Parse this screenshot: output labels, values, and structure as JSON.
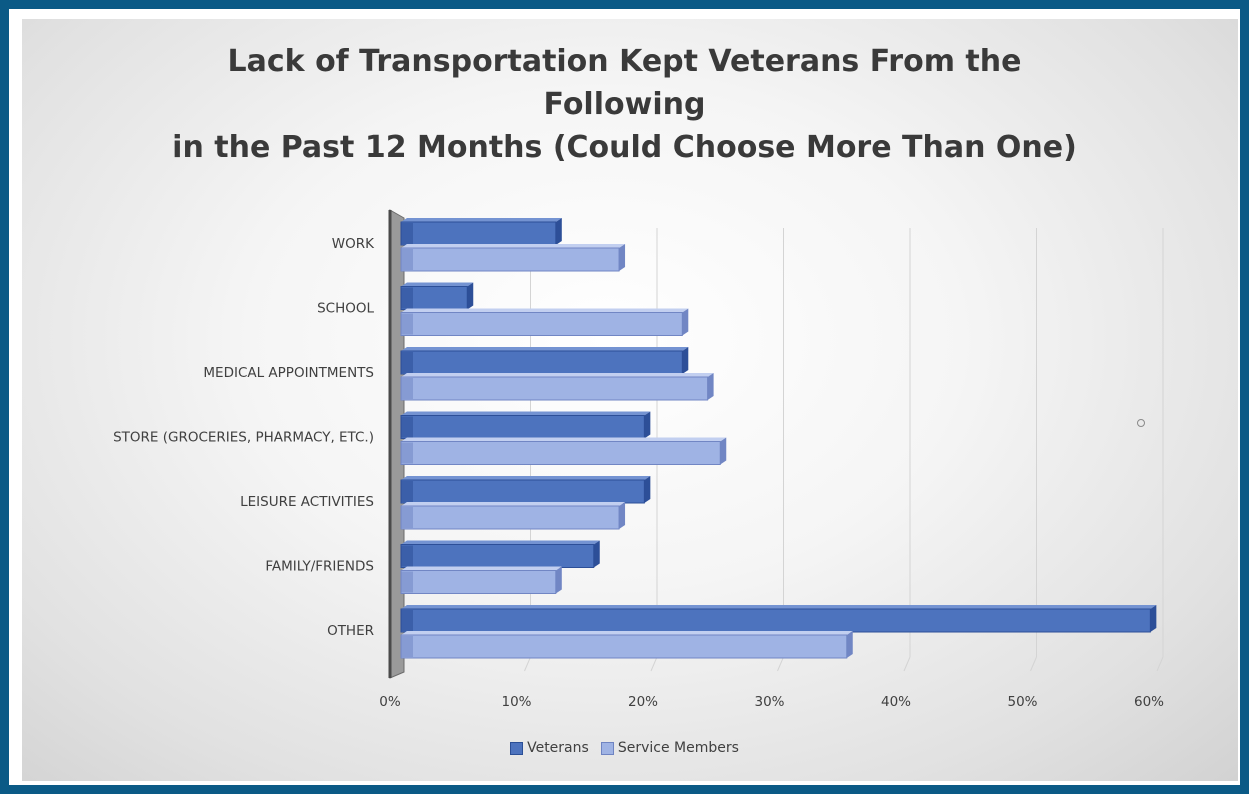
{
  "chart_data": {
    "type": "bar",
    "orientation": "horizontal",
    "title": [
      "Lack of Transportation Kept Veterans From the",
      "Following",
      "in the Past 12 Months (Could Choose More Than One)"
    ],
    "categories": [
      "WORK",
      "SCHOOL",
      "MEDICAL APPOINTMENTS",
      "STORE (GROCERIES, PHARMACY, ETC.)",
      "LEISURE ACTIVITIES",
      "FAMILY/FRIENDS",
      "OTHER"
    ],
    "series": [
      {
        "name": "Veterans",
        "values": [
          12,
          5,
          22,
          19,
          19,
          15,
          59
        ],
        "color": "#4d73be"
      },
      {
        "name": "Service Members",
        "values": [
          17,
          22,
          24,
          25,
          17,
          12,
          35
        ],
        "color": "#9fb3e4"
      }
    ],
    "xlim": [
      0,
      60
    ],
    "xticks": [
      "0%",
      "10%",
      "20%",
      "30%",
      "40%",
      "50%",
      "60%"
    ],
    "grid": true,
    "legend": "bottom",
    "style": "3d-bar"
  }
}
